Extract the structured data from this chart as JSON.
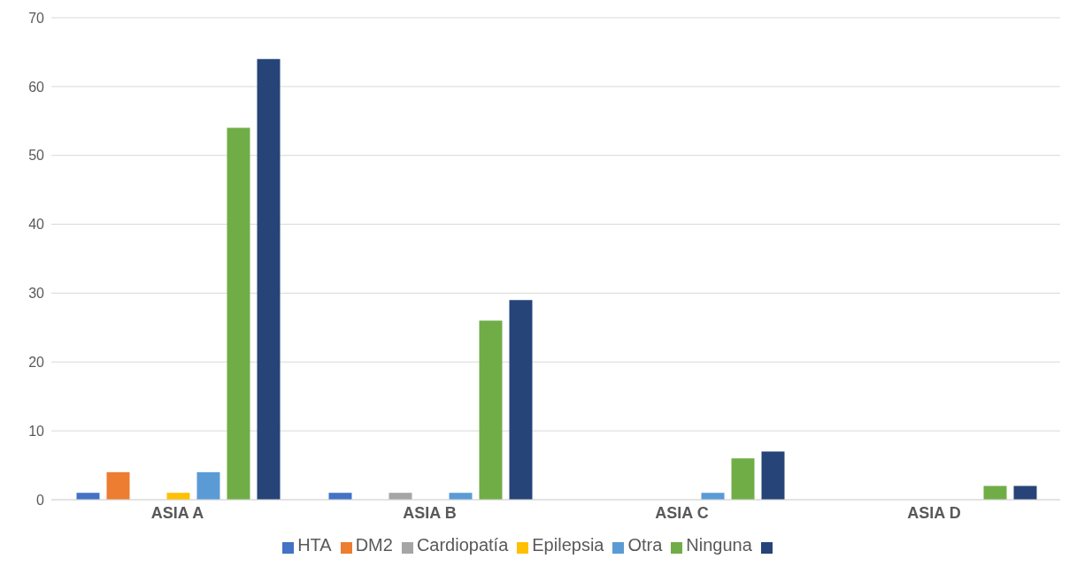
{
  "chart_data": {
    "type": "bar",
    "categories": [
      "ASIA A",
      "ASIA B",
      "ASIA C",
      "ASIA D"
    ],
    "series": [
      {
        "name": "HTA",
        "color": "#4472c4",
        "values": [
          1,
          1,
          0,
          0
        ]
      },
      {
        "name": "DM2",
        "color": "#ed7d31",
        "values": [
          4,
          0,
          0,
          0
        ]
      },
      {
        "name": "Cardiopatía",
        "color": "#a5a5a5",
        "values": [
          0,
          1,
          0,
          0
        ]
      },
      {
        "name": "Epilepsia",
        "color": "#ffc000",
        "values": [
          1,
          0,
          0,
          0
        ]
      },
      {
        "name": "Otra",
        "color": "#5b9bd5",
        "values": [
          4,
          1,
          1,
          0
        ]
      },
      {
        "name": "Ninguna",
        "color": "#70ad47",
        "values": [
          54,
          26,
          6,
          2
        ]
      },
      {
        "color": "#264478",
        "values": [
          64,
          29,
          7,
          2
        ]
      }
    ],
    "ylim": [
      0,
      70
    ],
    "yticks": [
      0,
      10,
      20,
      30,
      40,
      50,
      60,
      70
    ],
    "grid": "y",
    "legend": "bottom"
  }
}
